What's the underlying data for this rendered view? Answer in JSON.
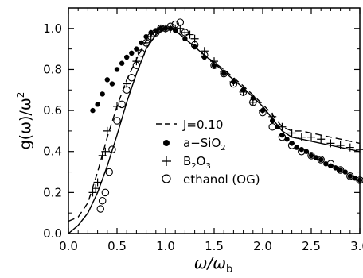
{
  "chart_data": {
    "type": "scatter",
    "xlabel": "ω/ω",
    "xlabel_sub": "b",
    "ylabel": "g(ω)/ω",
    "ylabel_sup": "2",
    "xlim": [
      0,
      3.0
    ],
    "ylim": [
      0,
      1.1
    ],
    "xticks": [
      0.0,
      0.5,
      1.0,
      1.5,
      2.0,
      2.5,
      3.0
    ],
    "yticks": [
      0.0,
      0.2,
      0.4,
      0.6,
      0.8,
      1.0
    ],
    "xtick_labels": [
      "0.0",
      "0.5",
      "1.0",
      "1.5",
      "2.0",
      "2.5",
      "3.0"
    ],
    "ytick_labels": [
      "0.0",
      "0.2",
      "0.4",
      "0.6",
      "0.8",
      "1.0"
    ],
    "grid": false,
    "legend_position": "center-left",
    "legend": [
      {
        "label": "J=0.10",
        "marker": "dashed-line"
      },
      {
        "label": "a−SiO",
        "sub": "2",
        "marker": "filled-circle"
      },
      {
        "label": "B",
        "sub": "2",
        "label2": "O",
        "sub2": "3",
        "marker": "plus"
      },
      {
        "label": "ethanol (OG)",
        "marker": "open-circle"
      }
    ],
    "series": [
      {
        "name": "J=0.10",
        "style": "dashed",
        "x": [
          0.0,
          0.1,
          0.2,
          0.3,
          0.4,
          0.5,
          0.6,
          0.7,
          0.8,
          0.9,
          1.0,
          1.05,
          1.1,
          1.2,
          1.4,
          1.6,
          1.8,
          2.0,
          2.1,
          2.2,
          2.3,
          2.4,
          2.5,
          2.6,
          2.7,
          2.8,
          2.9,
          3.0
        ],
        "y": [
          0.06,
          0.08,
          0.15,
          0.3,
          0.47,
          0.62,
          0.75,
          0.85,
          0.94,
          0.99,
          1.0,
          1.0,
          0.99,
          0.95,
          0.87,
          0.8,
          0.72,
          0.63,
          0.58,
          0.52,
          0.5,
          0.5,
          0.49,
          0.48,
          0.47,
          0.46,
          0.45,
          0.44
        ]
      },
      {
        "name": "solid",
        "style": "solid",
        "x": [
          0.0,
          0.1,
          0.2,
          0.3,
          0.4,
          0.5,
          0.6,
          0.7,
          0.8,
          0.9,
          1.0,
          1.05,
          1.1,
          1.2,
          1.4,
          1.6,
          1.8,
          2.0,
          2.1,
          2.2,
          2.3,
          2.4,
          2.5,
          2.6,
          2.7,
          2.8,
          2.9,
          3.0
        ],
        "y": [
          0.0,
          0.04,
          0.1,
          0.2,
          0.33,
          0.48,
          0.64,
          0.78,
          0.9,
          0.97,
          1.0,
          1.0,
          0.99,
          0.95,
          0.87,
          0.79,
          0.71,
          0.62,
          0.56,
          0.5,
          0.47,
          0.46,
          0.45,
          0.44,
          0.43,
          0.42,
          0.41,
          0.4
        ]
      },
      {
        "name": "a−SiO2",
        "marker": "filled-circle",
        "x": [
          0.25,
          0.3,
          0.35,
          0.4,
          0.45,
          0.5,
          0.55,
          0.6,
          0.65,
          0.7,
          0.75,
          0.8,
          0.85,
          0.9,
          0.95,
          1.0,
          1.05,
          1.1,
          1.2,
          1.3,
          1.4,
          1.5,
          1.6,
          1.7,
          1.8,
          1.9,
          2.0,
          2.1,
          2.15,
          2.2,
          2.25,
          2.3,
          2.35,
          2.4,
          2.45,
          2.5,
          2.55,
          2.6,
          2.65,
          2.7,
          2.75,
          2.8,
          2.85,
          2.9,
          2.95,
          3.0
        ],
        "y": [
          0.6,
          0.63,
          0.68,
          0.75,
          0.73,
          0.8,
          0.83,
          0.86,
          0.88,
          0.9,
          0.93,
          0.96,
          0.98,
          0.99,
          1.0,
          1.0,
          1.0,
          0.99,
          0.95,
          0.91,
          0.86,
          0.82,
          0.78,
          0.74,
          0.7,
          0.66,
          0.6,
          0.55,
          0.52,
          0.48,
          0.46,
          0.44,
          0.42,
          0.41,
          0.4,
          0.38,
          0.37,
          0.36,
          0.34,
          0.33,
          0.32,
          0.31,
          0.3,
          0.28,
          0.27,
          0.26
        ]
      },
      {
        "name": "B2O3",
        "marker": "plus",
        "x": [
          0.25,
          0.28,
          0.3,
          0.35,
          0.38,
          0.4,
          0.5,
          0.6,
          0.7,
          0.8,
          0.85,
          0.9,
          0.95,
          1.0,
          1.05,
          1.1,
          1.15,
          1.2,
          1.25,
          1.3,
          1.4,
          1.5,
          1.6,
          1.7,
          1.8,
          1.9,
          2.0,
          2.1,
          2.2,
          2.3,
          2.4,
          2.5,
          2.6,
          2.7,
          2.8,
          2.9,
          3.0
        ],
        "y": [
          0.2,
          0.22,
          0.25,
          0.38,
          0.4,
          0.5,
          0.62,
          0.73,
          0.84,
          0.93,
          0.96,
          0.98,
          1.0,
          1.0,
          1.0,
          1.0,
          1.0,
          0.98,
          0.97,
          0.95,
          0.89,
          0.84,
          0.79,
          0.74,
          0.69,
          0.64,
          0.6,
          0.57,
          0.52,
          0.49,
          0.47,
          0.47,
          0.46,
          0.44,
          0.43,
          0.42,
          0.41
        ]
      },
      {
        "name": "ethanol (OG)",
        "marker": "open-circle",
        "x": [
          0.33,
          0.35,
          0.38,
          0.42,
          0.45,
          0.5,
          0.55,
          0.6,
          0.65,
          0.7,
          0.75,
          0.8,
          0.85,
          0.9,
          0.95,
          1.0,
          1.05,
          1.1,
          1.15,
          1.2,
          1.3,
          1.4,
          1.5,
          1.6,
          1.7,
          1.8,
          1.9,
          2.0,
          2.1,
          2.2,
          2.3,
          2.4,
          2.5,
          2.6,
          2.7,
          2.8,
          2.9,
          3.0
        ],
        "y": [
          0.12,
          0.16,
          0.2,
          0.3,
          0.41,
          0.55,
          0.63,
          0.7,
          0.76,
          0.82,
          0.88,
          0.93,
          0.96,
          0.98,
          1.0,
          1.0,
          1.01,
          1.02,
          1.03,
          0.98,
          0.92,
          0.87,
          0.82,
          0.78,
          0.73,
          0.69,
          0.64,
          0.59,
          0.52,
          0.47,
          0.43,
          0.4,
          0.38,
          0.36,
          0.34,
          0.31,
          0.28,
          0.26
        ]
      }
    ]
  }
}
